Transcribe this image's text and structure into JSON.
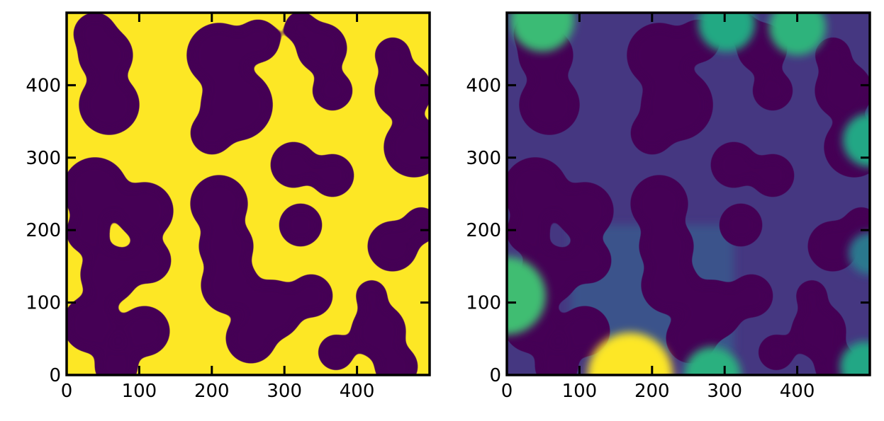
{
  "chart_data": [
    {
      "type": "image",
      "xlim": [
        0,
        500
      ],
      "ylim": [
        0,
        500
      ],
      "xticks": [
        0,
        100,
        200,
        300,
        400
      ],
      "yticks": [
        0,
        100,
        200,
        300,
        400
      ]
    },
    {
      "type": "image",
      "xlim": [
        0,
        500
      ],
      "ylim": [
        0,
        500
      ],
      "xticks": [
        0,
        100,
        200,
        300,
        400
      ],
      "yticks": [
        0,
        100,
        200,
        300,
        400
      ]
    }
  ]
}
